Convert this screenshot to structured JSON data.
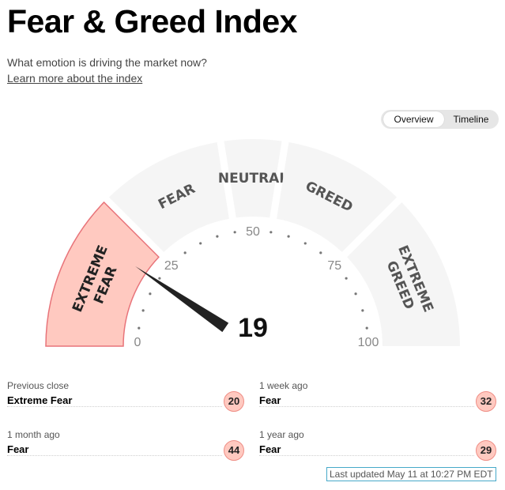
{
  "header": {
    "title": "Fear & Greed Index",
    "subtitle": "What emotion is driving the market now?",
    "learn_more": "Learn more about the index"
  },
  "view_toggle": {
    "options": [
      "Overview",
      "Timeline"
    ],
    "selected": "Overview"
  },
  "gauge": {
    "value": 19,
    "min": 0,
    "max": 100,
    "ticks": [
      "0",
      "25",
      "50",
      "75",
      "100"
    ],
    "segments": [
      {
        "label": "EXTREME\nFEAR",
        "from": 0,
        "to": 25,
        "active": true
      },
      {
        "label": "FEAR",
        "from": 25,
        "to": 45,
        "active": false
      },
      {
        "label": "NEUTRAL",
        "from": 45,
        "to": 55,
        "active": false
      },
      {
        "label": "GREED",
        "from": 55,
        "to": 75,
        "active": false
      },
      {
        "label": "EXTREME\nGREED",
        "from": 75,
        "to": 100,
        "active": false
      }
    ],
    "colors": {
      "active_fill": "#ffc9c0",
      "active_stroke": "#e8747a",
      "inactive_fill": "#f5f5f5",
      "inactive_text": "#555555",
      "active_text": "#222222",
      "needle": "#222222"
    }
  },
  "history": [
    {
      "label": "Previous close",
      "rating": "Extreme Fear",
      "value": "20"
    },
    {
      "label": "1 week ago",
      "rating": "Fear",
      "value": "32"
    },
    {
      "label": "1 month ago",
      "rating": "Fear",
      "value": "44"
    },
    {
      "label": "1 year ago",
      "rating": "Fear",
      "value": "29"
    }
  ],
  "last_updated": "Last updated May 11 at 10:27 PM EDT"
}
